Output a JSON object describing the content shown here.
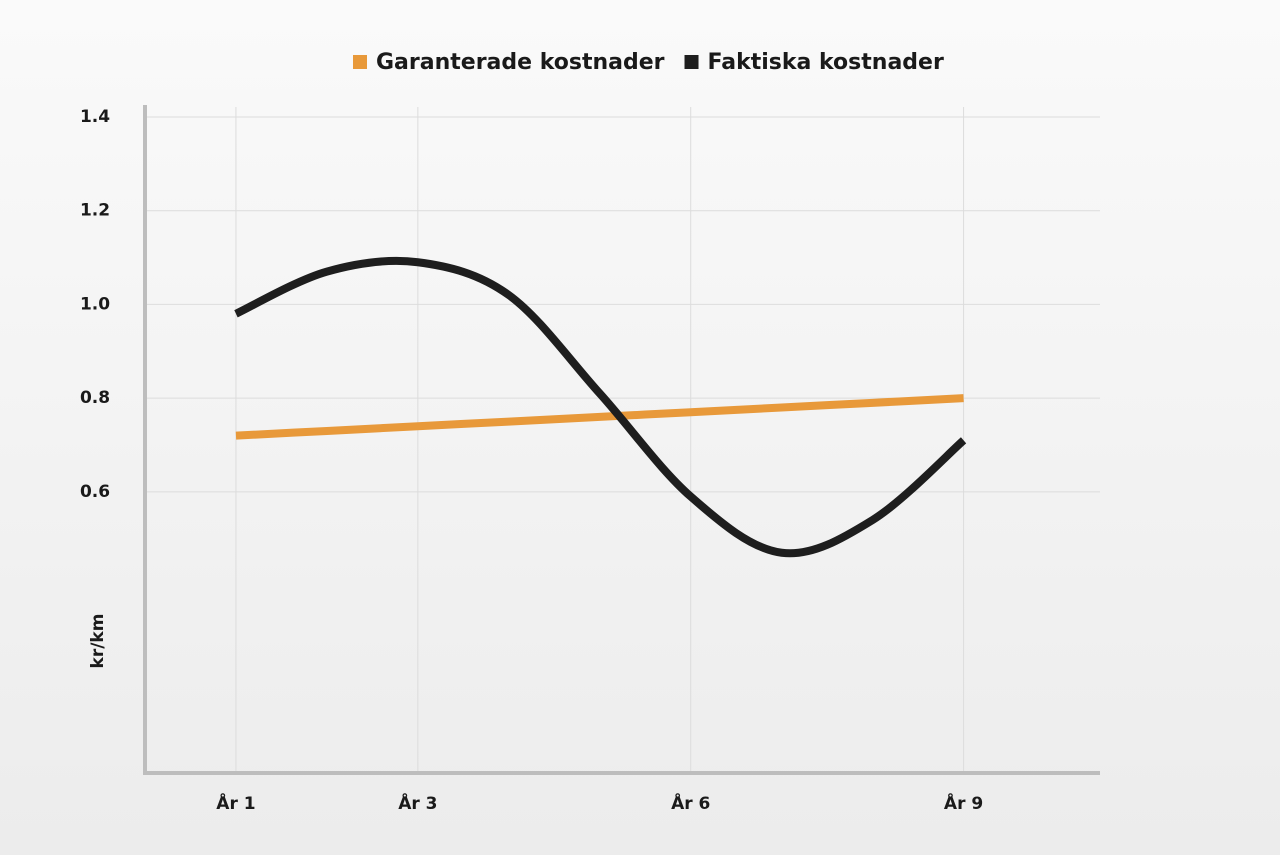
{
  "chart_data": {
    "type": "line",
    "y_label": "kr/km",
    "x": [
      1,
      2,
      3,
      4,
      5,
      6,
      7,
      8,
      9
    ],
    "xlim": [
      0,
      10.5
    ],
    "xticks": [
      {
        "value": 1,
        "label": "År 1"
      },
      {
        "value": 3,
        "label": "År 3"
      },
      {
        "value": 6,
        "label": "År 6"
      },
      {
        "value": 9,
        "label": "År 9"
      }
    ],
    "ylim": [
      0,
      1.4
    ],
    "yticks": [
      0.6,
      0.8,
      {
        "value": 1,
        "label": "1.0"
      },
      1.2,
      1.4
    ],
    "grid": true,
    "series": [
      {
        "name": "Garanterade kostnader",
        "color": "#e8993a",
        "values": [
          0.72,
          0.73,
          0.74,
          0.75,
          0.76,
          0.77,
          0.78,
          0.79,
          0.8
        ]
      },
      {
        "name": "Faktiska kostnader",
        "color": "#1e1e1e",
        "values": [
          0.98,
          1.07,
          1.09,
          1.02,
          0.81,
          0.59,
          0.47,
          0.54,
          0.71
        ]
      }
    ]
  }
}
